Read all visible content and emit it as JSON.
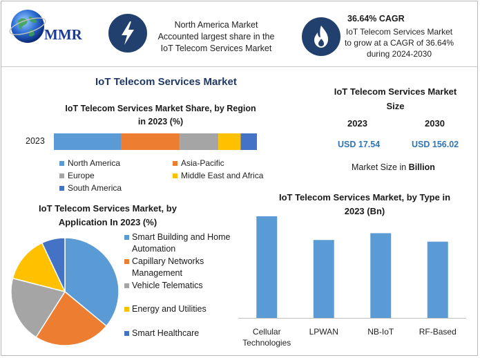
{
  "header": {
    "logo_text": "MMR",
    "box1_lines": [
      "North America Market",
      "Accounted largest share in the",
      "IoT Telecom Services Market"
    ],
    "box2_title": "36.64% CAGR",
    "box2_lines": [
      "IoT Telecom Services Market",
      "to grow at a CAGR of 36.64%",
      "during 2024-2030"
    ]
  },
  "main_title": "IoT Telecom Services Market",
  "colors": {
    "north_america": "#5b9bd5",
    "asia_pacific": "#ed7d31",
    "europe": "#a5a5a5",
    "middle_east_africa": "#ffc000",
    "south_america": "#4472c4",
    "column": "#5b9bd5",
    "icon_bg": "#22406e"
  },
  "market_size": {
    "title_lines": [
      "IoT Telecom Services Market",
      "Size"
    ],
    "year1": "2023",
    "year2": "2030",
    "value1": "USD 17.54",
    "value2": "USD 156.02",
    "note_prefix": "Market Size in ",
    "note_bold": "Billion"
  },
  "chart_data": [
    {
      "type": "bar",
      "orientation": "horizontal-stacked",
      "title_lines": [
        "IoT Telecom Services Market Share, by Region",
        "in 2023 (%)"
      ],
      "categories": [
        "2023"
      ],
      "series": [
        {
          "name": "North America",
          "values": [
            33
          ]
        },
        {
          "name": "Asia-Pacific",
          "values": [
            29
          ]
        },
        {
          "name": "Europe",
          "values": [
            19
          ]
        },
        {
          "name": "Middle East and Africa",
          "values": [
            11
          ]
        },
        {
          "name": "South America",
          "values": [
            8
          ]
        }
      ],
      "legend_placement": "bottom"
    },
    {
      "type": "pie",
      "title_lines": [
        "IoT Telecom Services Market, by",
        "Application In 2023 (%)"
      ],
      "labels": [
        "Smart Building and Home Automation",
        "Capillary Networks Management",
        "Vehicle Telematics",
        "Energy and Utilities",
        "Smart Healthcare"
      ],
      "legend_lines": [
        [
          "Smart Building and Home",
          "Automation"
        ],
        [
          "Capillary Networks",
          "Management"
        ],
        [
          "Vehicle Telematics"
        ],
        [
          "Energy and Utilities"
        ],
        [
          "Smart Healthcare"
        ]
      ],
      "values": [
        36,
        23,
        20,
        14,
        7
      ],
      "legend_placement": "right"
    },
    {
      "type": "bar",
      "title_lines": [
        "IoT Telecom Services Market, by Type in",
        "2023 (Bn)"
      ],
      "categories": [
        "Cellular Technologies",
        "LPWAN",
        "NB-IoT",
        "RF-Based"
      ],
      "category_lines": [
        [
          "Cellular",
          "Technologies"
        ],
        [
          "LPWAN"
        ],
        [
          "NB-IoT"
        ],
        [
          "RF-Based"
        ]
      ],
      "values": [
        6.0,
        4.6,
        5.0,
        4.5
      ],
      "ylim": [
        0,
        6.2
      ]
    }
  ]
}
